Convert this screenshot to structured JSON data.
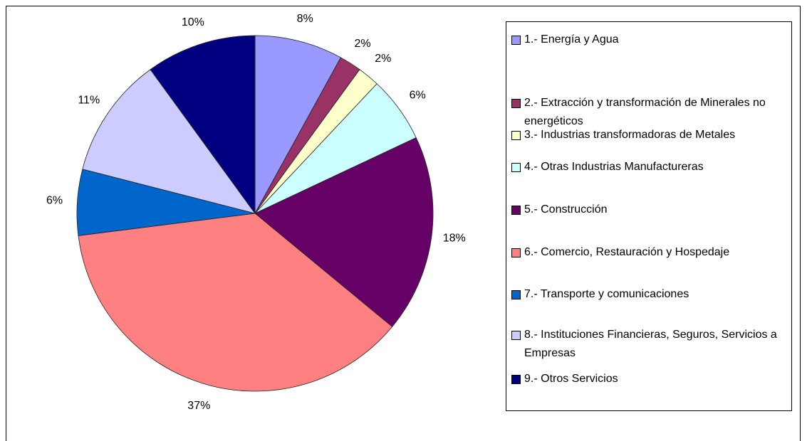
{
  "chart_data": {
    "type": "pie",
    "categories": [
      "1.- Energía y Agua",
      "2.- Extracción y transformación de Minerales no energéticos",
      "3.- Industrias transformadoras de Metales",
      "4.- Otras Industrias Manufactureras",
      "5.- Construcción",
      "6.- Comercio, Restauración y Hospedaje",
      "7.- Transporte y comunicaciones",
      "8.- Instituciones Financieras, Seguros, Servicios a Empresas",
      "9.- Otros Servicios"
    ],
    "values": [
      8,
      2,
      2,
      6,
      18,
      37,
      6,
      11,
      10
    ],
    "value_labels": [
      "8%",
      "2%",
      "2%",
      "6%",
      "18%",
      "37%",
      "6%",
      "11%",
      "10%"
    ],
    "colors": [
      "#9999ff",
      "#993366",
      "#ffffcc",
      "#ccffff",
      "#660066",
      "#ff8080",
      "#0066cc",
      "#ccccff",
      "#000080"
    ],
    "legend": "right"
  }
}
